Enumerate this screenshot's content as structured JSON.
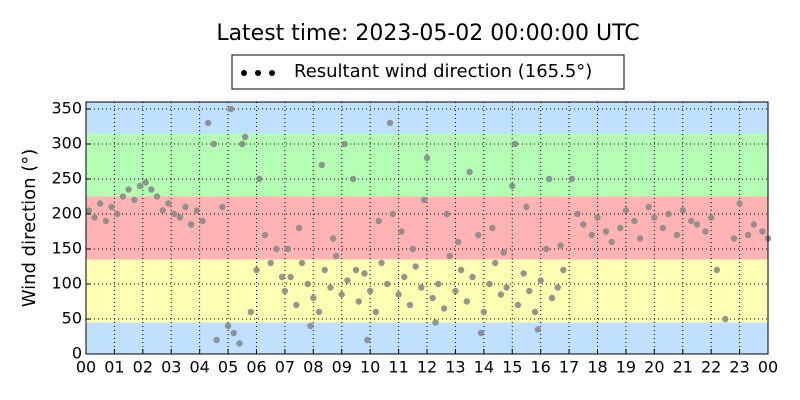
{
  "chart_data": {
    "type": "scatter",
    "title": "Latest time: 2023-05-02 00:00:00 UTC",
    "y_label": "Wind direction (°)",
    "x": [
      0.1,
      0.3,
      0.5,
      0.7,
      0.9,
      1.1,
      1.3,
      1.5,
      1.7,
      1.9,
      2.1,
      2.3,
      2.5,
      2.7,
      2.9,
      3.1,
      3.3,
      3.5,
      3.7,
      3.9,
      4.1,
      4.3,
      4.5,
      4.6,
      4.8,
      5.0,
      5.1,
      5.2,
      5.4,
      5.5,
      5.6,
      5.8,
      6.0,
      6.1,
      6.3,
      6.5,
      6.7,
      6.9,
      7.0,
      7.2,
      7.4,
      7.6,
      7.8,
      8.0,
      8.2,
      8.4,
      8.6,
      8.8,
      9.0,
      9.2,
      9.4,
      9.6,
      9.8,
      10.0,
      10.2,
      10.4,
      10.6,
      10.8,
      11.0,
      11.2,
      11.4,
      11.6,
      11.8,
      12.0,
      12.2,
      12.4,
      12.6,
      12.8,
      13.0,
      13.2,
      13.4,
      13.6,
      13.8,
      14.0,
      14.2,
      14.4,
      14.6,
      14.8,
      15.0,
      15.2,
      15.4,
      15.6,
      15.8,
      16.0,
      16.2,
      16.4,
      16.6,
      16.8,
      7.1,
      7.5,
      7.9,
      8.3,
      8.7,
      9.1,
      9.5,
      9.9,
      10.3,
      10.7,
      11.1,
      11.5,
      11.9,
      12.3,
      12.7,
      13.1,
      13.5,
      13.9,
      14.3,
      14.7,
      15.1,
      15.5,
      15.9,
      16.3,
      16.7,
      17.1,
      17.3,
      17.5,
      17.8,
      18.0,
      18.3,
      18.5,
      18.8,
      19.0,
      19.3,
      19.5,
      19.8,
      20.0,
      20.3,
      20.5,
      20.8,
      21.0,
      21.3,
      21.5,
      21.8,
      22.0,
      22.2,
      22.5,
      22.8,
      23.0,
      23.3,
      23.5,
      23.8,
      24.0
    ],
    "series": [
      {
        "name": "Resultant wind direction (165.5°)",
        "color": "#8a8a8a",
        "values": [
          205,
          195,
          215,
          190,
          210,
          200,
          225,
          235,
          220,
          240,
          245,
          235,
          225,
          205,
          215,
          200,
          195,
          210,
          185,
          205,
          190,
          330,
          300,
          20,
          210,
          40,
          350,
          30,
          15,
          300,
          310,
          60,
          120,
          250,
          170,
          130,
          150,
          110,
          90,
          110,
          70,
          130,
          100,
          80,
          60,
          120,
          95,
          140,
          85,
          105,
          250,
          75,
          115,
          90,
          60,
          130,
          100,
          200,
          85,
          110,
          70,
          125,
          95,
          280,
          80,
          100,
          65,
          140,
          90,
          120,
          75,
          110,
          170,
          60,
          100,
          130,
          85,
          95,
          240,
          70,
          115,
          90,
          60,
          105,
          150,
          80,
          95,
          120,
          150,
          180,
          40,
          270,
          165,
          300,
          120,
          20,
          190,
          330,
          175,
          150,
          220,
          45,
          200,
          160,
          260,
          30,
          180,
          145,
          300,
          210,
          35,
          250,
          155,
          250,
          200,
          185,
          170,
          195,
          175,
          160,
          180,
          205,
          190,
          165,
          210,
          195,
          180,
          200,
          170,
          205,
          190,
          185,
          175,
          195,
          120,
          50,
          165,
          215,
          170,
          185,
          175,
          165
        ]
      }
    ],
    "bands": [
      {
        "from": 0,
        "to": 45,
        "color": "#bfe0ff"
      },
      {
        "from": 45,
        "to": 135,
        "color": "#ffffb3"
      },
      {
        "from": 135,
        "to": 225,
        "color": "#ffb3b3"
      },
      {
        "from": 225,
        "to": 315,
        "color": "#b3ffb3"
      },
      {
        "from": 315,
        "to": 360,
        "color": "#bfe0ff"
      }
    ],
    "xlim": [
      0,
      24
    ],
    "xticks": [
      {
        "value": 0,
        "label": "00"
      },
      {
        "value": 1,
        "label": "01"
      },
      {
        "value": 2,
        "label": "02"
      },
      {
        "value": 3,
        "label": "03"
      },
      {
        "value": 4,
        "label": "04"
      },
      {
        "value": 5,
        "label": "05"
      },
      {
        "value": 6,
        "label": "06"
      },
      {
        "value": 7,
        "label": "07"
      },
      {
        "value": 8,
        "label": "08"
      },
      {
        "value": 9,
        "label": "09"
      },
      {
        "value": 10,
        "label": "10"
      },
      {
        "value": 11,
        "label": "11"
      },
      {
        "value": 12,
        "label": "12"
      },
      {
        "value": 13,
        "label": "13"
      },
      {
        "value": 14,
        "label": "14"
      },
      {
        "value": 15,
        "label": "15"
      },
      {
        "value": 16,
        "label": "16"
      },
      {
        "value": 17,
        "label": "17"
      },
      {
        "value": 18,
        "label": "18"
      },
      {
        "value": 19,
        "label": "19"
      },
      {
        "value": 20,
        "label": "20"
      },
      {
        "value": 21,
        "label": "21"
      },
      {
        "value": 22,
        "label": "22"
      },
      {
        "value": 23,
        "label": "23"
      },
      {
        "value": 24,
        "label": "00"
      }
    ],
    "ylim": [
      0,
      360
    ],
    "yticks": [
      0,
      50,
      100,
      150,
      200,
      250,
      300,
      350
    ],
    "grid": true
  }
}
